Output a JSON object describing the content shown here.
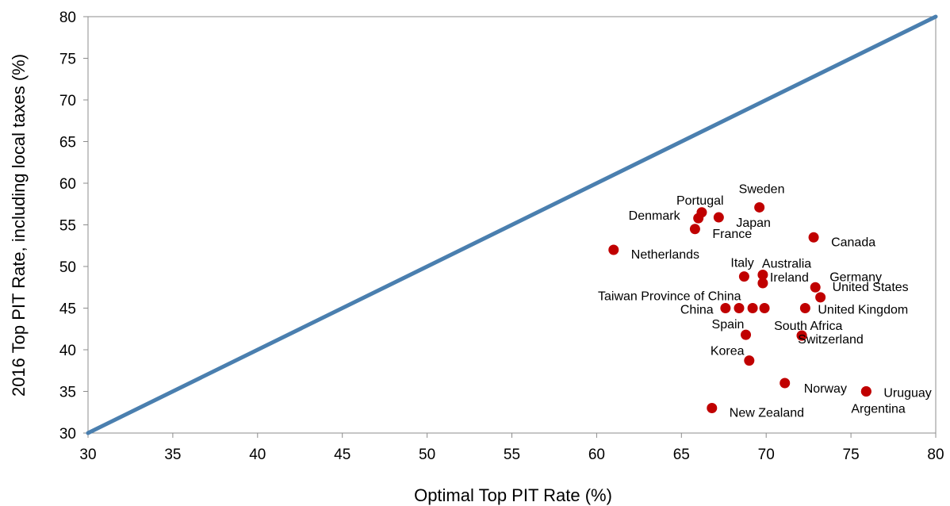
{
  "chart_data": {
    "type": "scatter",
    "title": "",
    "xlabel": "Optimal Top PIT Rate (%)",
    "ylabel": "2016 Top PIT Rate, including local taxes (%)",
    "xlim": [
      30,
      80
    ],
    "ylim": [
      30,
      80
    ],
    "x_ticks": [
      "30",
      "35",
      "40",
      "45",
      "50",
      "55",
      "60",
      "65",
      "70",
      "75",
      "80"
    ],
    "y_ticks": [
      "30",
      "35",
      "40",
      "45",
      "50",
      "55",
      "60",
      "65",
      "70",
      "75",
      "80"
    ],
    "grid": false,
    "legend": "none",
    "reference_line": {
      "from": [
        30,
        30
      ],
      "to": [
        80,
        80
      ],
      "color": "#4A7FAF"
    },
    "marker_color": "#C00000",
    "points": [
      {
        "label": "Sweden",
        "x": 69.6,
        "y": 57.1
      },
      {
        "label": "Portugal",
        "x": 66.2,
        "y": 56.5
      },
      {
        "label": "Denmark",
        "x": 66.0,
        "y": 55.8
      },
      {
        "label": "Japan",
        "x": 67.2,
        "y": 55.9
      },
      {
        "label": "France",
        "x": 65.8,
        "y": 54.5
      },
      {
        "label": "Canada",
        "x": 72.8,
        "y": 53.5
      },
      {
        "label": "Netherlands",
        "x": 61.0,
        "y": 52.0
      },
      {
        "label": "Italy",
        "x": 68.7,
        "y": 48.8
      },
      {
        "label": "Australia",
        "x": 69.8,
        "y": 49.0
      },
      {
        "label": "Ireland",
        "x": 69.8,
        "y": 48.0
      },
      {
        "label": "Germany",
        "x": 72.9,
        "y": 47.5
      },
      {
        "label": "United States",
        "x": 73.2,
        "y": 46.3
      },
      {
        "label": "Taiwan Province of China",
        "x": 68.4,
        "y": 45.0
      },
      {
        "label": "China",
        "x": 67.6,
        "y": 45.0
      },
      {
        "label": "",
        "x": 69.2,
        "y": 45.0
      },
      {
        "label": "",
        "x": 69.9,
        "y": 45.0
      },
      {
        "label": "United Kingdom",
        "x": 72.3,
        "y": 45.0
      },
      {
        "label": "South Africa",
        "x": 72.1,
        "y": 41.7
      },
      {
        "label": "Spain",
        "x": 68.8,
        "y": 41.8
      },
      {
        "label": "Switzerland",
        "x": 72.1,
        "y": 41.7
      },
      {
        "label": "Korea",
        "x": 69.0,
        "y": 38.7
      },
      {
        "label": "Norway",
        "x": 71.1,
        "y": 36.0
      },
      {
        "label": "Uruguay",
        "x": 75.9,
        "y": 35.0
      },
      {
        "label": "Argentina",
        "x": 75.9,
        "y": 35.0
      },
      {
        "label": "New Zealand",
        "x": 66.8,
        "y": 33.0
      }
    ]
  }
}
